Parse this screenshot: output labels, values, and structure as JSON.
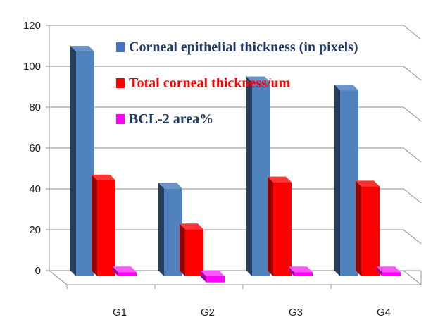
{
  "chart_data": {
    "type": "bar",
    "categories": [
      "G1",
      "G2",
      "G3",
      "G4"
    ],
    "series": [
      {
        "name": "Corneal epithelial thickness (in pixels)",
        "values": [
          110,
          43,
          95,
          91
        ],
        "color": "#4f81bd",
        "color_legend": "#4472c4",
        "text_color": "#1f3864"
      },
      {
        "name": "Total corneal thickness/um",
        "values": [
          47,
          23,
          46,
          44
        ],
        "color": "#ff0000",
        "color_legend": "#ff0000",
        "text_color": "#ff0000"
      },
      {
        "name": "BCL-2 area%",
        "values": [
          2,
          -3,
          2,
          2
        ],
        "color": "#ff00ff",
        "color_legend": "#ff00ff",
        "text_color": "#1f3864"
      }
    ],
    "y_ticks": [
      "0",
      "20",
      "40",
      "60",
      "80",
      "100",
      "120"
    ],
    "ylim": [
      0,
      120
    ],
    "grid": true,
    "legend_position": "top-right inside plot",
    "style": "3d-clustered-column"
  }
}
